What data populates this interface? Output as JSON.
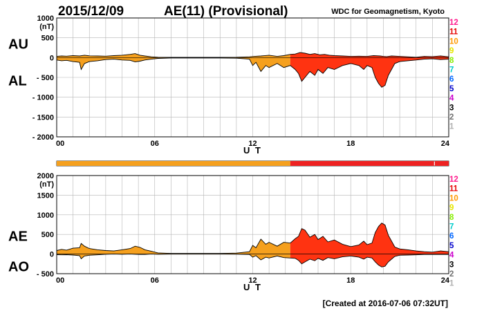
{
  "header": {
    "date": "2015/12/09",
    "title": "AE(11) (Provisional)",
    "source": "WDC for Geomagnetism, Kyoto"
  },
  "footer": {
    "created": "[Created at 2016-07-06 07:32UT]"
  },
  "level_scale": {
    "labels": [
      "12",
      "11",
      "10",
      "9",
      "8",
      "7",
      "6",
      "5",
      "4",
      "3",
      "2",
      "1"
    ],
    "colors": [
      "#ff1a8c",
      "#e60000",
      "#ff9900",
      "#e6e600",
      "#88ee00",
      "#00cccc",
      "#0066ff",
      "#0000cc",
      "#cc00cc",
      "#000000",
      "#707070",
      "#b0b0b0"
    ]
  },
  "activity_bar": {
    "segments": [
      {
        "from": 0,
        "to": 14.3,
        "color": "#f5a01e"
      },
      {
        "from": 14.3,
        "to": 23.1,
        "color": "#ee2222"
      },
      {
        "from": 23.15,
        "to": 24,
        "color": "#ee2222"
      }
    ]
  },
  "chart_data": [
    {
      "type": "area",
      "id": "au_al",
      "labels": {
        "upper": "AU",
        "lower": "AL"
      },
      "unit": "(nT)",
      "xlabel": "U T",
      "xlim": [
        0,
        24
      ],
      "xticks": [
        0,
        6,
        12,
        18,
        24
      ],
      "xtick_labels": [
        "00",
        "06",
        "12",
        "18",
        "24"
      ],
      "ylim": [
        -2000,
        1000
      ],
      "yticks": [
        1000,
        500,
        0,
        -500,
        -1000,
        -1500,
        -2000
      ],
      "ytick_labels": [
        "1000",
        "500",
        "0",
        "- 500",
        "- 1000",
        "- 1500",
        "- 2000"
      ],
      "grid": true,
      "color_segments": [
        {
          "from": 0,
          "to": 14.3,
          "color": "#f5a01e"
        },
        {
          "from": 14.3,
          "to": 24,
          "color": "#ff3311"
        }
      ],
      "series": [
        {
          "name": "AU",
          "x": [
            0,
            0.3,
            0.6,
            1.0,
            1.4,
            1.7,
            2.0,
            2.5,
            3.0,
            3.5,
            4.0,
            4.5,
            4.8,
            5.1,
            5.4,
            5.8,
            6.2,
            7,
            8,
            9,
            10,
            11,
            11.8,
            12.1,
            12.5,
            13.0,
            13.5,
            13.9,
            14.3,
            14.6,
            14.9,
            15.2,
            15.5,
            15.8,
            16.1,
            16.4,
            16.7,
            17.0,
            17.5,
            18.0,
            18.5,
            19.0,
            19.4,
            19.8,
            20.0,
            20.2,
            20.5,
            21.0,
            21.5,
            22.0,
            22.5,
            23.0,
            23.5,
            24
          ],
          "values": [
            30,
            40,
            35,
            50,
            40,
            60,
            45,
            40,
            35,
            50,
            60,
            80,
            100,
            60,
            40,
            20,
            10,
            5,
            5,
            5,
            5,
            10,
            20,
            30,
            40,
            60,
            30,
            50,
            80,
            90,
            130,
            110,
            80,
            100,
            70,
            80,
            60,
            50,
            40,
            30,
            35,
            30,
            50,
            40,
            30,
            25,
            40,
            30,
            20,
            10,
            30,
            25,
            40,
            20
          ]
        },
        {
          "name": "AL",
          "x": [
            0,
            0.3,
            0.6,
            1.0,
            1.4,
            1.5,
            1.7,
            2.0,
            2.5,
            3.0,
            3.5,
            4.0,
            4.5,
            4.8,
            5.1,
            5.4,
            5.8,
            6.2,
            7,
            8,
            9,
            10,
            11,
            11.8,
            12.0,
            12.2,
            12.5,
            12.8,
            13.0,
            13.5,
            13.9,
            14.3,
            14.6,
            14.8,
            15.0,
            15.2,
            15.5,
            15.8,
            16.0,
            16.3,
            16.6,
            17.0,
            17.5,
            18.0,
            18.5,
            18.8,
            19.0,
            19.3,
            19.5,
            19.7,
            19.9,
            20.1,
            20.3,
            20.5,
            20.7,
            21.0,
            21.5,
            22.0,
            22.5,
            23.0,
            23.5,
            24
          ],
          "values": [
            -60,
            -80,
            -70,
            -100,
            -120,
            -300,
            -150,
            -100,
            -80,
            -50,
            -40,
            -60,
            -70,
            -110,
            -90,
            -60,
            -40,
            -20,
            -10,
            -10,
            -10,
            -10,
            -15,
            -40,
            -200,
            -120,
            -350,
            -200,
            -250,
            -150,
            -250,
            -200,
            -300,
            -400,
            -600,
            -500,
            -350,
            -450,
            -300,
            -400,
            -250,
            -300,
            -200,
            -150,
            -200,
            -300,
            -200,
            -250,
            -500,
            -650,
            -750,
            -700,
            -450,
            -300,
            -150,
            -100,
            -80,
            -60,
            -40,
            -30,
            -50,
            -40
          ]
        }
      ]
    },
    {
      "type": "area",
      "id": "ae_ao",
      "labels": {
        "upper": "AE",
        "lower": "AO"
      },
      "unit": "(nT)",
      "xlabel": "U T",
      "xlim": [
        0,
        24
      ],
      "xticks": [
        0,
        6,
        12,
        18,
        24
      ],
      "xtick_labels": [
        "00",
        "06",
        "12",
        "18",
        "24"
      ],
      "ylim": [
        -500,
        2000
      ],
      "yticks": [
        2000,
        1500,
        1000,
        500,
        0,
        -500
      ],
      "ytick_labels": [
        "2000",
        "1500",
        "1000",
        "500",
        "0",
        "- 500"
      ],
      "grid": true,
      "color_segments": [
        {
          "from": 0,
          "to": 14.3,
          "color": "#f5a01e"
        },
        {
          "from": 14.3,
          "to": 24,
          "color": "#ff3311"
        }
      ],
      "series": [
        {
          "name": "AE",
          "x": [
            0,
            0.3,
            0.6,
            1.0,
            1.4,
            1.5,
            1.7,
            2.0,
            2.5,
            3.0,
            3.5,
            4.0,
            4.5,
            4.8,
            5.1,
            5.4,
            5.8,
            6.2,
            7,
            8,
            9,
            10,
            11,
            11.8,
            12.0,
            12.2,
            12.5,
            12.8,
            13.0,
            13.5,
            13.9,
            14.3,
            14.6,
            14.8,
            15.0,
            15.2,
            15.5,
            15.8,
            16.0,
            16.3,
            16.6,
            17.0,
            17.5,
            18.0,
            18.5,
            18.8,
            19.0,
            19.3,
            19.5,
            19.7,
            19.9,
            20.1,
            20.3,
            20.5,
            20.7,
            21.0,
            21.5,
            22.0,
            22.5,
            23.0,
            23.5,
            24
          ],
          "values": [
            90,
            120,
            100,
            150,
            160,
            270,
            200,
            140,
            110,
            90,
            80,
            110,
            140,
            200,
            170,
            110,
            70,
            30,
            15,
            15,
            15,
            15,
            25,
            60,
            220,
            160,
            380,
            250,
            300,
            200,
            300,
            280,
            390,
            450,
            650,
            610,
            430,
            500,
            370,
            450,
            310,
            360,
            250,
            190,
            230,
            330,
            240,
            280,
            550,
            700,
            790,
            740,
            480,
            330,
            180,
            130,
            110,
            80,
            60,
            50,
            80,
            60
          ]
        },
        {
          "name": "AO",
          "x": [
            0,
            0.3,
            0.6,
            1.0,
            1.4,
            1.5,
            1.7,
            2.0,
            2.5,
            3.0,
            3.5,
            4.0,
            4.5,
            4.8,
            5.1,
            5.4,
            5.8,
            6.2,
            7,
            8,
            9,
            10,
            11,
            11.8,
            12.0,
            12.2,
            12.5,
            12.8,
            13.0,
            13.5,
            13.9,
            14.3,
            14.6,
            14.8,
            15.0,
            15.2,
            15.5,
            15.8,
            16.0,
            16.3,
            16.6,
            17.0,
            17.5,
            18.0,
            18.5,
            18.8,
            19.0,
            19.3,
            19.5,
            19.7,
            19.9,
            20.1,
            20.3,
            20.5,
            20.7,
            21.0,
            21.5,
            22.0,
            22.5,
            23.0,
            23.5,
            24
          ],
          "values": [
            -15,
            -20,
            -15,
            -25,
            -40,
            -120,
            -50,
            -30,
            -20,
            -5,
            0,
            -5,
            0,
            -5,
            -10,
            -10,
            0,
            -5,
            -2,
            -2,
            -2,
            -2,
            -3,
            -10,
            -80,
            -40,
            -150,
            -80,
            -100,
            -50,
            -90,
            -100,
            -110,
            -160,
            -250,
            -200,
            -130,
            -170,
            -110,
            -160,
            -90,
            -120,
            -70,
            -50,
            -80,
            -130,
            -80,
            -100,
            -200,
            -280,
            -330,
            -310,
            -200,
            -130,
            -60,
            -30,
            -25,
            -20,
            -10,
            -10,
            -10,
            -10
          ]
        }
      ]
    }
  ]
}
